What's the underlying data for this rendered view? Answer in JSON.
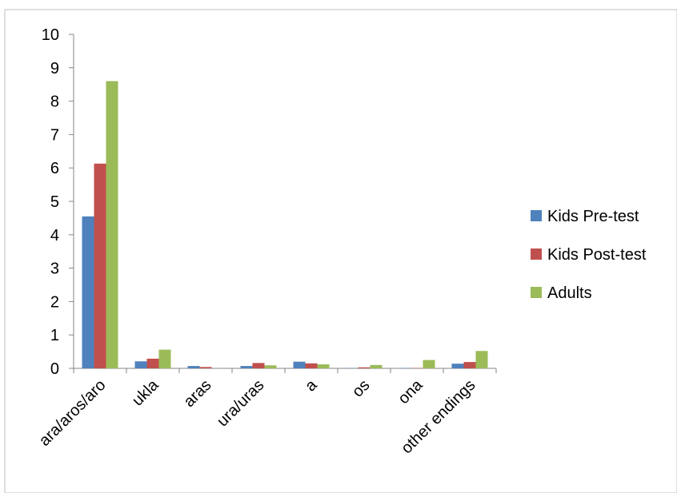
{
  "chart_data": {
    "type": "bar",
    "title": "",
    "xlabel": "",
    "ylabel": "",
    "ylim": [
      0,
      10
    ],
    "yticks": [
      "0",
      "1",
      "2",
      "3",
      "4",
      "5",
      "6",
      "7",
      "8",
      "9",
      "10"
    ],
    "grid": false,
    "legend_position": "right",
    "categories": [
      "ara/aros/aro",
      "ukla",
      "aras",
      "ura/uras",
      "a",
      "os",
      "ona",
      "other endings"
    ],
    "series": [
      {
        "name": "Kids Pre-test",
        "color": "#4F81BD",
        "values": [
          4.55,
          0.21,
          0.07,
          0.07,
          0.2,
          0.01,
          0.01,
          0.14
        ]
      },
      {
        "name": "Kids Post-test",
        "color": "#C0504D",
        "values": [
          6.13,
          0.29,
          0.04,
          0.16,
          0.15,
          0.03,
          0.01,
          0.19
        ]
      },
      {
        "name": "Adults",
        "color": "#9BBB59",
        "values": [
          8.6,
          0.56,
          0.0,
          0.09,
          0.12,
          0.1,
          0.25,
          0.52
        ]
      }
    ]
  }
}
